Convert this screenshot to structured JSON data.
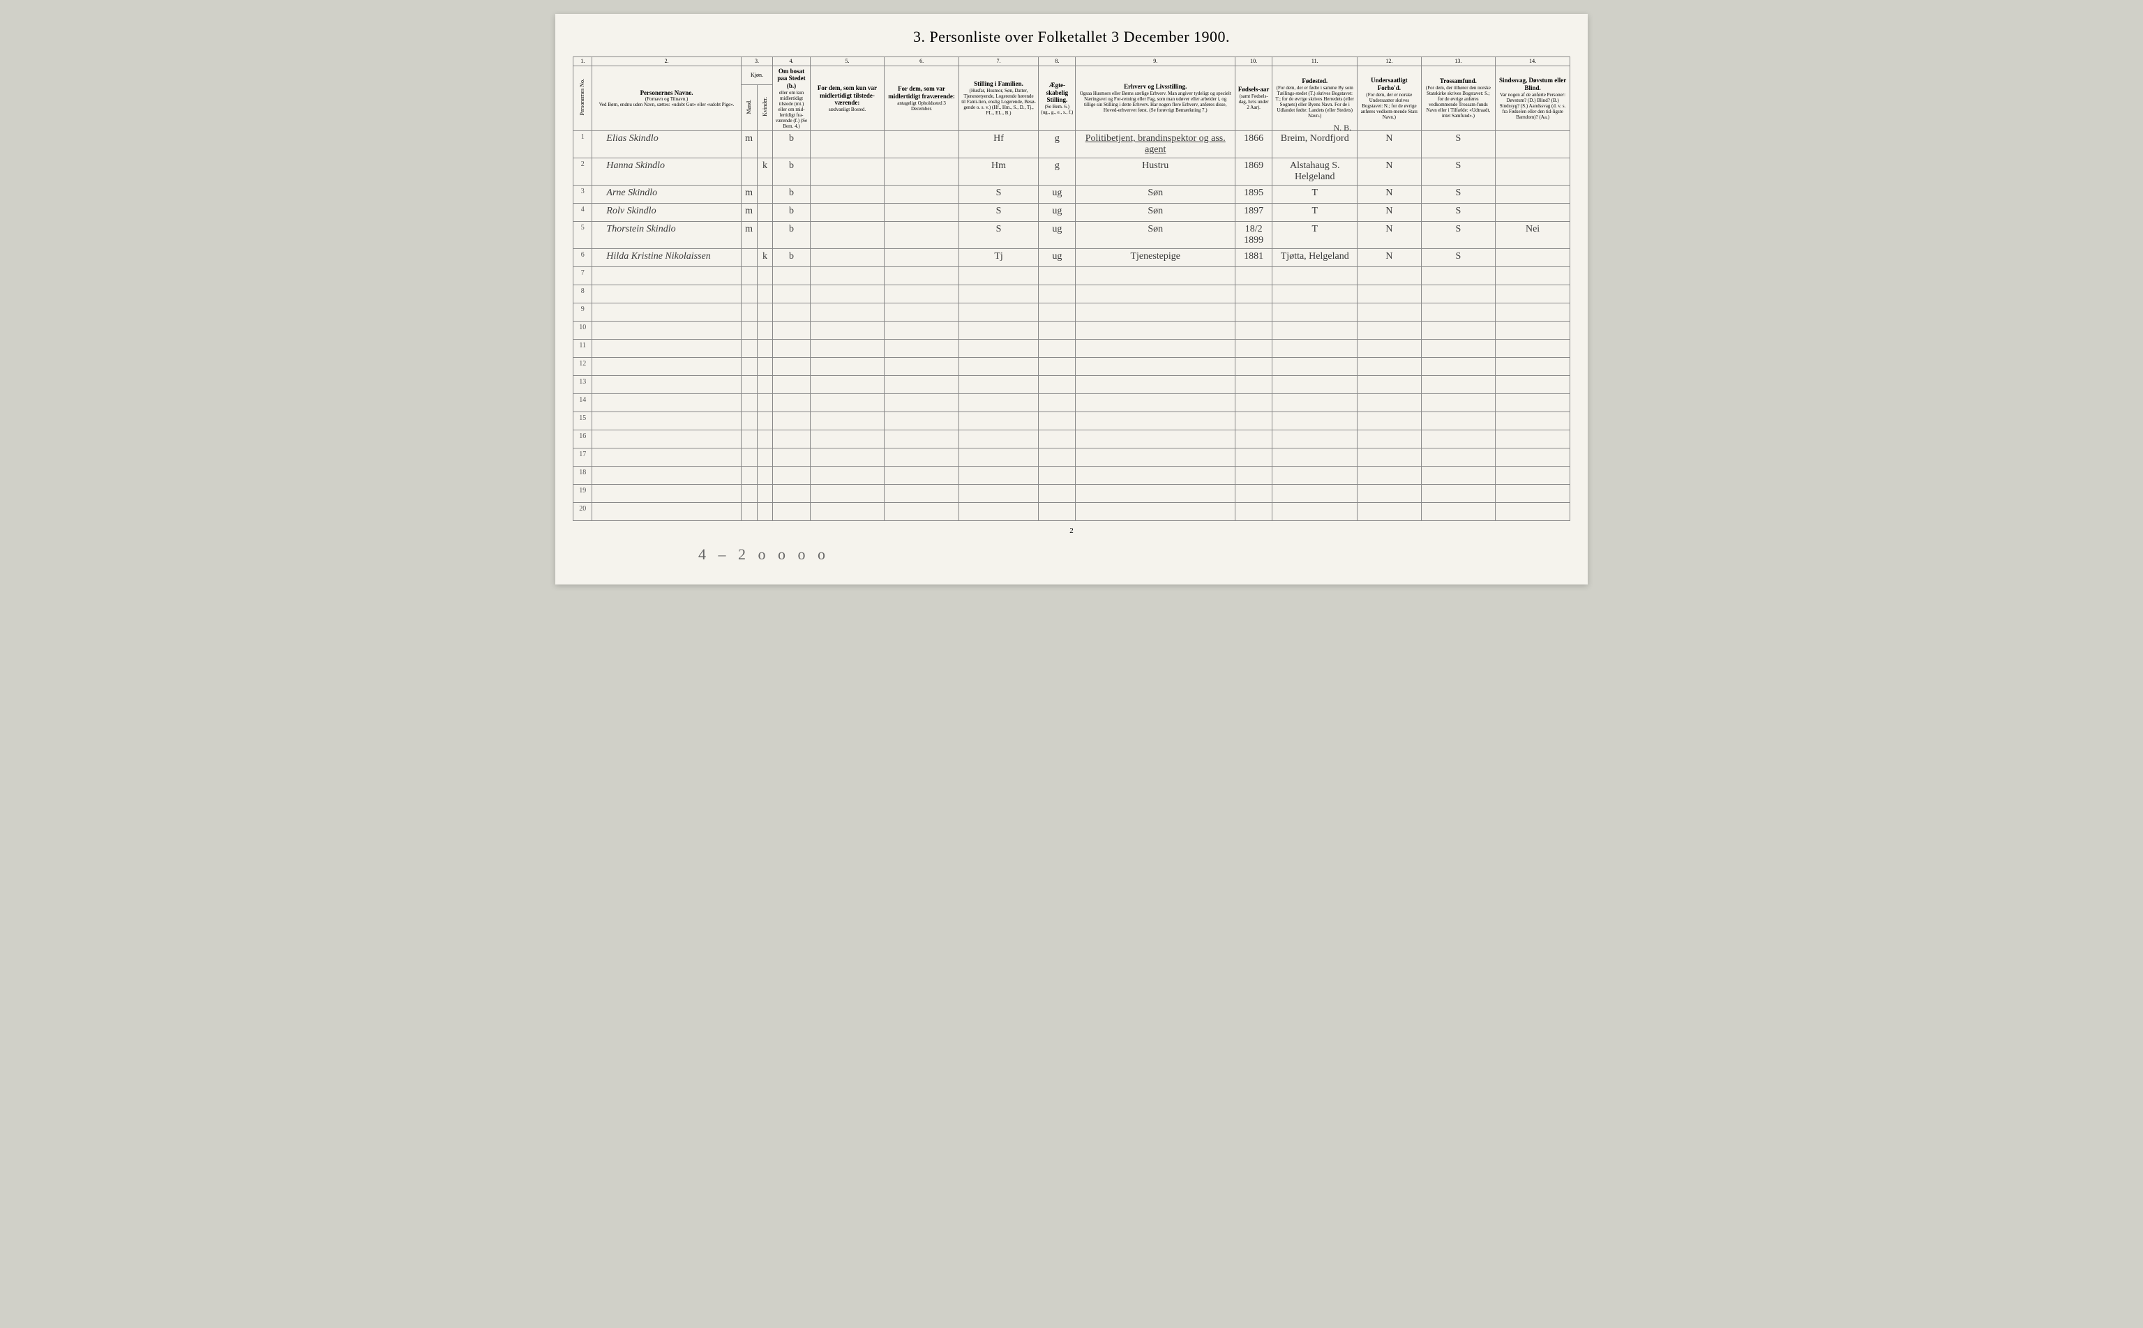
{
  "title": "3. Personliste over Folketallet 3 December 1900.",
  "columnNumbers": [
    "1.",
    "2.",
    "3.",
    "4.",
    "5.",
    "6.",
    "7.",
    "8.",
    "9.",
    "10.",
    "11.",
    "12.",
    "13.",
    "14."
  ],
  "headers": {
    "rowNum": "Personernes No.",
    "name": {
      "main": "Personernes Navne.",
      "sub1": "(Fornavn og Tilnavn.)",
      "sub2": "Ved Børn, endnu uden Navn, sættes: «udobt Gut» eller «udobt Pige»."
    },
    "sex": {
      "main": "Kjøn.",
      "m": "Mand.",
      "k": "Kvinder.",
      "mk": "m. k."
    },
    "resident": {
      "main": "Om bosat paa Stedet (b.)",
      "sub": "eller om kun midlertidigt tilstede (mt.) eller om mid-lertidigt fra-værende (f.) (Se Bem. 4.)"
    },
    "tempPresent": {
      "main": "For dem, som kun var midlertidigt tilstede-værende:",
      "sub": "sædvanligt Bosted."
    },
    "tempAbsent": {
      "main": "For dem, som var midlertidigt fraværende:",
      "sub": "antageligt Opholdssted 3 December."
    },
    "position": {
      "main": "Stilling i Familien.",
      "sub": "(Husfar, Husmor, Søn, Datter, Tjenestetyende, Logerende hørende til Fami-lien, enslig Logerende, Besø-gende o. s. v.) (Hf., Hm., S., D., Tj., FL., EL., B.)"
    },
    "marital": {
      "main": "Ægte-skabelig Stilling.",
      "sub": "(Se Bem. 6.) (ug., g., e., s., f.)"
    },
    "occupation": {
      "main": "Erhverv og Livsstilling.",
      "sub": "Ogsaa Husmors eller Børns særlige Erhverv. Man angiver tydeligt og specielt Næringsvei og For-retning eller Fag, som man udøver eller arbeider i, og tillige sin Stilling i dette Erhverv. Har nogen flere Erhverv, anføres disse, Hoved-erhvervet først. (Se forøvrigt Bemærkning 7.)"
    },
    "birthYear": {
      "main": "Fødsels-aar",
      "sub": "(samt Fødsels-dag, hvis under 2 Aar)."
    },
    "birthplace": {
      "main": "Fødested.",
      "sub": "(For dem, der er fødte i samme By som Tællings-stedet (T.) skrives Bogstavet: T.; for de øvrige skrives Herredets (eller Sognets) eller Byens Navn. For de i Udlandet fødte: Landets (eller Stedets) Navn.)"
    },
    "nationality": {
      "main": "Undersaatligt Forho'd.",
      "sub": "(For dem, der er norske Undersaatter skrives Bogstavet: N.; for de øvrige anføres vedkom-mende Stats Navn.)"
    },
    "religion": {
      "main": "Trossamfund.",
      "sub": "(For dem, der tilhører den norske Statskirke skrives Bogstavet: S.; for de øvrige anføres vedkommende Trossam-funds Navn eller i Tilfælde: «Udtraadt, intet Samfund».)"
    },
    "disability": {
      "main": "Sindssvag, Døvstum eller Blind.",
      "sub": "Var nogen af de anførte Personer: Døvstum? (D.) Blind? (B.) Sindssyg? (S.) Aandssvag (d. v. s. fra Fødselen eller den tid-ligste Barndom)? (Aa.)"
    }
  },
  "nbText": "N. B.",
  "rows": [
    {
      "num": "1",
      "name": "Elias Skindlo",
      "sexM": "m",
      "sexK": "",
      "resident": "b",
      "tempPresent": "",
      "tempAbsent": "",
      "position": "Hf",
      "marital": "g",
      "occupation": "Politibetjent, brandinspektor og ass. agent",
      "birthYear": "1866",
      "birthplace": "Breim, Nordfjord",
      "nationality": "N",
      "religion": "S",
      "disability": ""
    },
    {
      "num": "2",
      "name": "Hanna Skindlo",
      "sexM": "",
      "sexK": "k",
      "resident": "b",
      "tempPresent": "",
      "tempAbsent": "",
      "position": "Hm",
      "marital": "g",
      "occupation": "Hustru",
      "birthYear": "1869",
      "birthplace": "Alstahaug S. Helgeland",
      "nationality": "N",
      "religion": "S",
      "disability": ""
    },
    {
      "num": "3",
      "name": "Arne Skindlo",
      "sexM": "m",
      "sexK": "",
      "resident": "b",
      "tempPresent": "",
      "tempAbsent": "",
      "position": "S",
      "marital": "ug",
      "occupation": "Søn",
      "birthYear": "1895",
      "birthplace": "T",
      "nationality": "N",
      "religion": "S",
      "disability": ""
    },
    {
      "num": "4",
      "name": "Rolv Skindlo",
      "sexM": "m",
      "sexK": "",
      "resident": "b",
      "tempPresent": "",
      "tempAbsent": "",
      "position": "S",
      "marital": "ug",
      "occupation": "Søn",
      "birthYear": "1897",
      "birthplace": "T",
      "nationality": "N",
      "religion": "S",
      "disability": ""
    },
    {
      "num": "5",
      "name": "Thorstein Skindlo",
      "sexM": "m",
      "sexK": "",
      "resident": "b",
      "tempPresent": "",
      "tempAbsent": "",
      "position": "S",
      "marital": "ug",
      "occupation": "Søn",
      "birthYear": "18/2 1899",
      "birthplace": "T",
      "nationality": "N",
      "religion": "S",
      "disability": "Nei"
    },
    {
      "num": "6",
      "name": "Hilda Kristine Nikolaissen",
      "sexM": "",
      "sexK": "k",
      "resident": "b",
      "tempPresent": "",
      "tempAbsent": "",
      "position": "Tj",
      "marital": "ug",
      "occupation": "Tjenestepige",
      "birthYear": "1881",
      "birthplace": "Tjøtta, Helgeland",
      "nationality": "N",
      "religion": "S",
      "disability": ""
    }
  ],
  "emptyRowNumbers": [
    "7",
    "8",
    "9",
    "10",
    "11",
    "12",
    "13",
    "14",
    "15",
    "16",
    "17",
    "18",
    "19",
    "20"
  ],
  "footerPageNum": "2",
  "bottomNote": "4 – 2  o o   o o",
  "colors": {
    "pageBackground": "#f5f3ed",
    "bodyBackground": "#d0d0c8",
    "borderColor": "#888",
    "textColor": "#3a3a3a",
    "faintText": "#666"
  },
  "dimensions": {
    "originalWidth": 3072,
    "originalHeight": 1904
  }
}
